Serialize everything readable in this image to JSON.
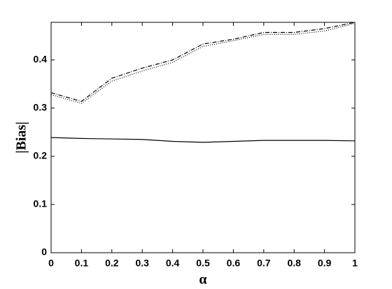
{
  "chart_data": {
    "type": "line",
    "x_label": "α",
    "y_label": "|Bias|",
    "x": [
      0,
      0.1,
      0.2,
      0.3,
      0.4,
      0.5,
      0.6,
      0.7,
      0.8,
      0.9,
      1
    ],
    "series": [
      {
        "color": "#000000",
        "dash": "solid",
        "values": [
          0.239,
          0.237,
          0.236,
          0.235,
          0.231,
          0.229,
          0.231,
          0.233,
          0.233,
          0.233,
          0.232
        ]
      },
      {
        "color": "#000000",
        "dash": "dashdot",
        "values": [
          0.332,
          0.314,
          0.362,
          0.383,
          0.4,
          0.433,
          0.443,
          0.457,
          0.457,
          0.465,
          0.478
        ]
      },
      {
        "color": "#000000",
        "dash": "dotted",
        "values": [
          0.328,
          0.31,
          0.356,
          0.377,
          0.395,
          0.428,
          0.44,
          0.453,
          0.453,
          0.46,
          0.476
        ]
      }
    ],
    "xlim": [
      0,
      1
    ],
    "xticks": [
      0,
      0.1,
      0.2,
      0.3,
      0.4,
      0.5,
      0.6,
      0.7,
      0.8,
      0.9,
      1
    ],
    "ylim": [
      0,
      0.478
    ],
    "yticks": [
      0,
      0.1,
      0.2,
      0.3,
      0.4
    ],
    "grid": false
  }
}
